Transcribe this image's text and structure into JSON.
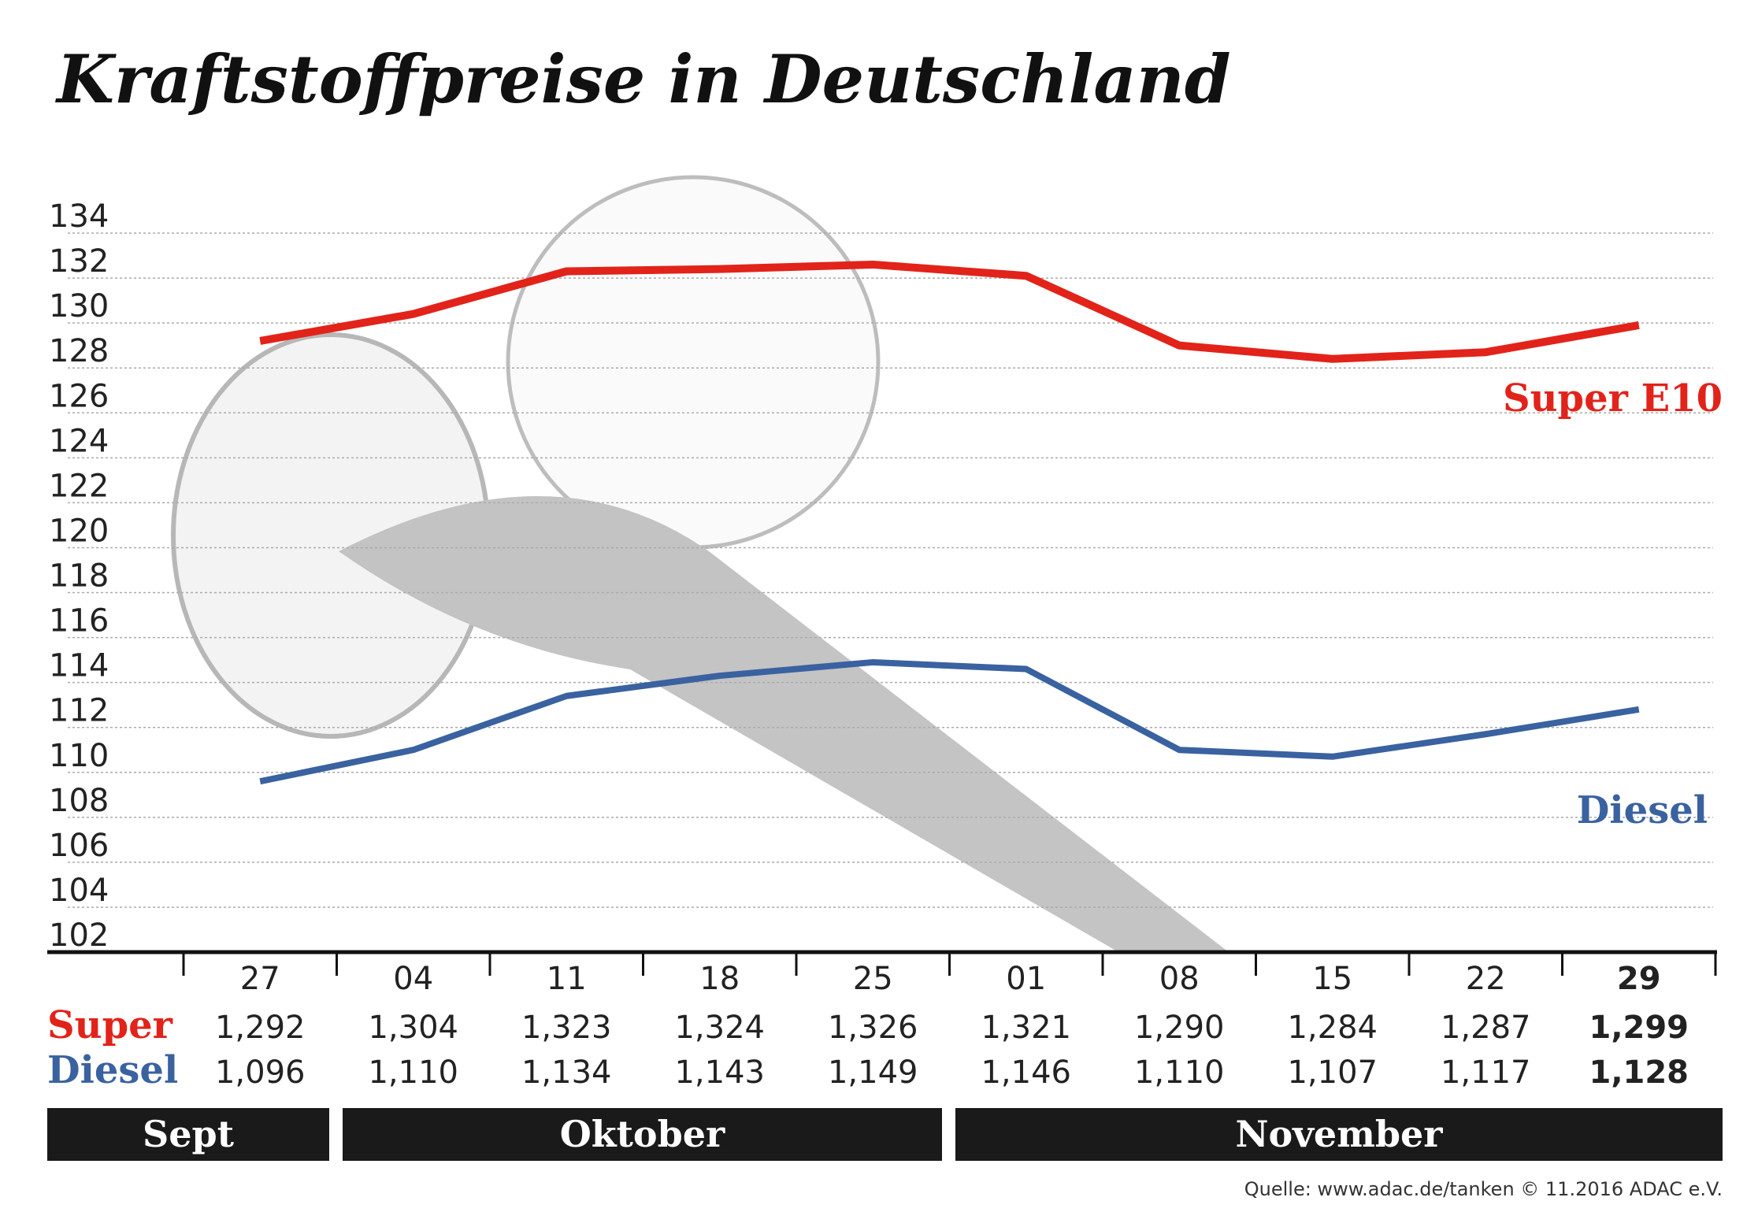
{
  "chart_data": {
    "type": "line",
    "title": "Kraftstoffpreise in Deutschland",
    "categories": [
      "27",
      "04",
      "11",
      "18",
      "25",
      "01",
      "08",
      "15",
      "22",
      "29"
    ],
    "series": [
      {
        "name": "Super E10",
        "row_label": "Super",
        "color": "#e2231a",
        "values": [
          129.2,
          130.4,
          132.3,
          132.4,
          132.6,
          132.1,
          129.0,
          128.4,
          128.7,
          129.9
        ],
        "value_labels": [
          "1,292",
          "1,304",
          "1,323",
          "1,324",
          "1,326",
          "1,321",
          "1,290",
          "1,284",
          "1,287",
          "1,299"
        ]
      },
      {
        "name": "Diesel",
        "row_label": "Diesel",
        "color": "#3a62a0",
        "values": [
          109.6,
          111.0,
          113.4,
          114.3,
          114.9,
          114.6,
          111.0,
          110.7,
          111.7,
          112.8
        ],
        "value_labels": [
          "1,096",
          "1,110",
          "1,134",
          "1,143",
          "1,149",
          "1,146",
          "1,110",
          "1,107",
          "1,117",
          "1,128"
        ]
      }
    ],
    "months": [
      "Sept",
      "Oktober",
      "November"
    ],
    "ylim": [
      102,
      134
    ],
    "yticks": [
      134,
      132,
      130,
      128,
      126,
      124,
      122,
      120,
      118,
      116,
      114,
      112,
      110,
      108,
      106,
      104,
      102
    ],
    "grid": true,
    "source": "Quelle: www.adac.de/tanken   © 11.2016  ADAC e.V."
  }
}
